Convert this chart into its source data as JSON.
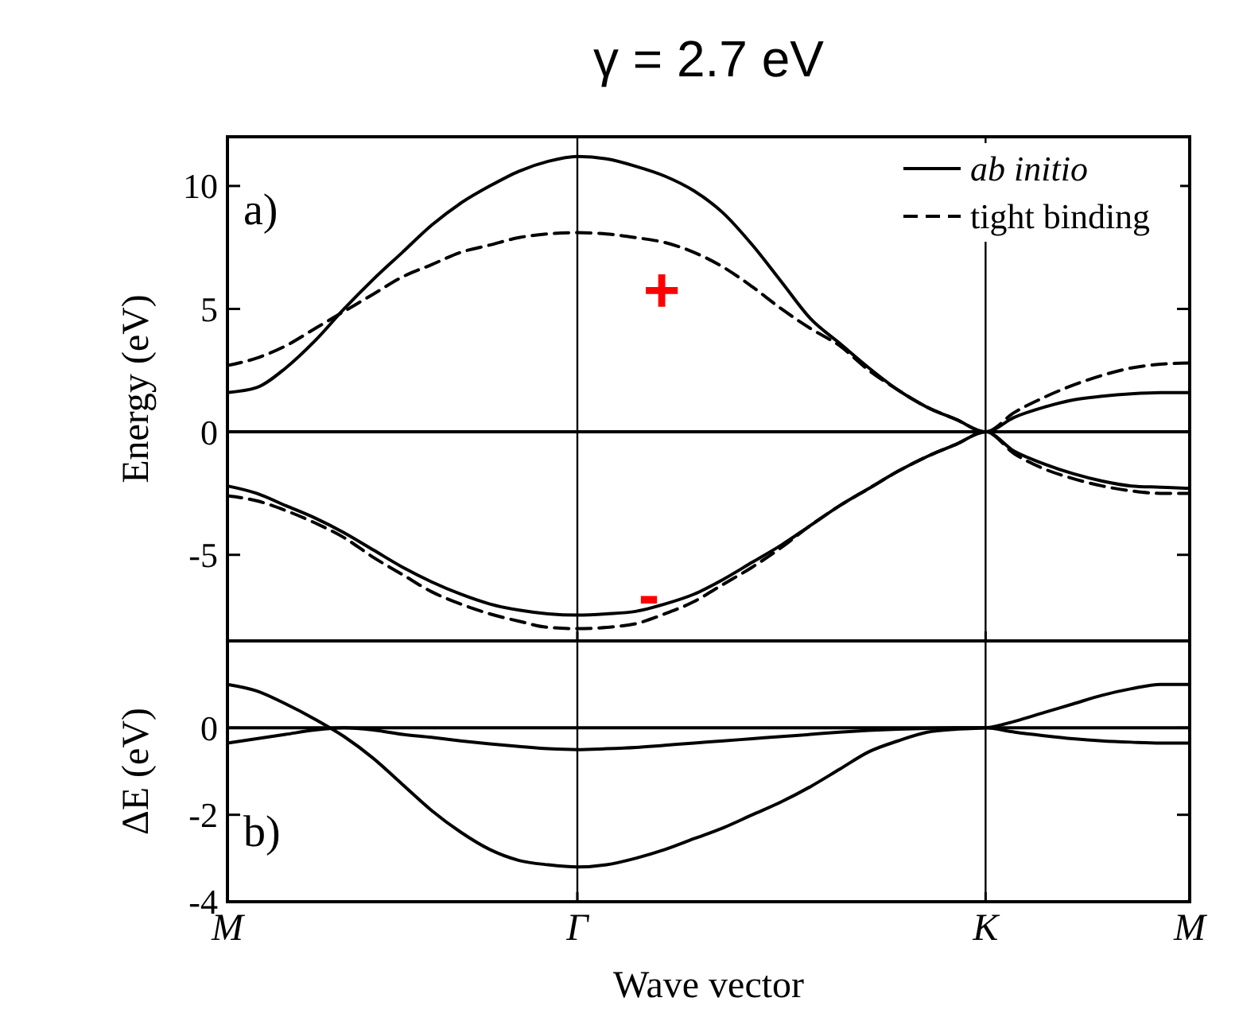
{
  "chart_data": [
    {
      "type": "line",
      "title": "γ = 2.7 eV",
      "ylabel": "Energy (eV)",
      "categories": [
        "M",
        null,
        null,
        null,
        null,
        null,
        null,
        null,
        null,
        null,
        null,
        null,
        "Γ",
        null,
        null,
        null,
        null,
        null,
        null,
        null,
        null,
        null,
        null,
        null,
        null,
        null,
        "K",
        null,
        null,
        null,
        null,
        null,
        null,
        "M"
      ],
      "ylim": [
        -8.5,
        12
      ],
      "yticks": [
        -5,
        0,
        5,
        10
      ],
      "tick_labels": "y",
      "legend": "top right",
      "ref_lines": [
        {
          "axis": "x",
          "value": "Γ"
        },
        {
          "axis": "x",
          "value": "K"
        },
        {
          "axis": "y",
          "value": 0
        }
      ],
      "annotations": [
        "a)",
        "+",
        "-"
      ],
      "series": [
        {
          "name": "ab initio",
          "color": "#000000",
          "line_style": "solid",
          "values": [
            1.6,
            1.8,
            2.6,
            3.7,
            5.0,
            6.2,
            7.3,
            8.4,
            9.3,
            10.0,
            10.6,
            11.0,
            11.2,
            11.1,
            10.8,
            10.4,
            9.8,
            8.9,
            7.6,
            6.1,
            4.6,
            3.6,
            2.6,
            1.7,
            1.0,
            0.5,
            0,
            0.6,
            1.0,
            1.3,
            1.45,
            1.55,
            1.6,
            1.6
          ]
        },
        {
          "name": "tight binding",
          "color": "#000000",
          "line_style": "dashed",
          "values": [
            2.7,
            3.0,
            3.5,
            4.2,
            4.9,
            5.6,
            6.3,
            6.8,
            7.3,
            7.6,
            7.9,
            8.05,
            8.1,
            8.05,
            7.9,
            7.7,
            7.3,
            6.7,
            5.9,
            5.0,
            4.2,
            3.5,
            2.5,
            1.7,
            1.0,
            0.5,
            0,
            0.8,
            1.4,
            1.9,
            2.3,
            2.6,
            2.75,
            2.8
          ]
        },
        {
          "color": "#000000",
          "line_style": "solid",
          "values": [
            -2.2,
            -2.5,
            -3.0,
            -3.5,
            -4.1,
            -4.8,
            -5.5,
            -6.1,
            -6.6,
            -7.0,
            -7.25,
            -7.4,
            -7.45,
            -7.4,
            -7.3,
            -7.0,
            -6.6,
            -6.0,
            -5.3,
            -4.6,
            -3.8,
            -3.0,
            -2.3,
            -1.6,
            -1.0,
            -0.5,
            0,
            -0.8,
            -1.3,
            -1.7,
            -2.0,
            -2.2,
            -2.25,
            -2.3
          ]
        },
        {
          "color": "#000000",
          "line_style": "dashed",
          "values": [
            -2.6,
            -2.8,
            -3.2,
            -3.7,
            -4.3,
            -5.1,
            -5.8,
            -6.5,
            -7.0,
            -7.4,
            -7.7,
            -7.95,
            -8.0,
            -7.95,
            -7.8,
            -7.4,
            -6.9,
            -6.2,
            -5.5,
            -4.7,
            -3.8,
            -3.0,
            -2.3,
            -1.6,
            -1.0,
            -0.5,
            0,
            -0.9,
            -1.5,
            -1.9,
            -2.2,
            -2.4,
            -2.5,
            -2.5
          ]
        }
      ]
    },
    {
      "type": "line",
      "xlabel": "Wave vector",
      "ylabel": "ΔE (eV)",
      "categories": [
        "M",
        null,
        null,
        null,
        null,
        null,
        null,
        null,
        null,
        null,
        null,
        null,
        "Γ",
        null,
        null,
        null,
        null,
        null,
        null,
        null,
        null,
        null,
        null,
        null,
        null,
        null,
        "K",
        null,
        null,
        null,
        null,
        null,
        null,
        "M"
      ],
      "ylim": [
        -4,
        2
      ],
      "yticks": [
        -4,
        -2,
        0
      ],
      "ref_lines": [
        {
          "axis": "x",
          "value": "Γ"
        },
        {
          "axis": "x",
          "value": "K"
        },
        {
          "axis": "y",
          "value": 0
        }
      ],
      "annotations": [
        "b)"
      ],
      "series": [
        {
          "color": "#000000",
          "line_style": "solid",
          "values": [
            1.0,
            0.85,
            0.55,
            0.2,
            -0.2,
            -0.7,
            -1.3,
            -1.9,
            -2.4,
            -2.8,
            -3.05,
            -3.15,
            -3.2,
            -3.15,
            -3.0,
            -2.8,
            -2.55,
            -2.3,
            -2.0,
            -1.7,
            -1.35,
            -0.95,
            -0.55,
            -0.3,
            -0.1,
            -0.03,
            0,
            0.15,
            0.35,
            0.55,
            0.75,
            0.9,
            1.0,
            1.0
          ]
        },
        {
          "color": "#000000",
          "line_style": "solid",
          "values": [
            -0.35,
            -0.25,
            -0.15,
            -0.05,
            0,
            -0.05,
            -0.15,
            -0.22,
            -0.3,
            -0.37,
            -0.43,
            -0.48,
            -0.5,
            -0.48,
            -0.45,
            -0.4,
            -0.35,
            -0.3,
            -0.25,
            -0.2,
            -0.15,
            -0.1,
            -0.06,
            -0.03,
            -0.01,
            0,
            0,
            -0.1,
            -0.18,
            -0.25,
            -0.3,
            -0.33,
            -0.35,
            -0.35
          ]
        }
      ]
    }
  ]
}
